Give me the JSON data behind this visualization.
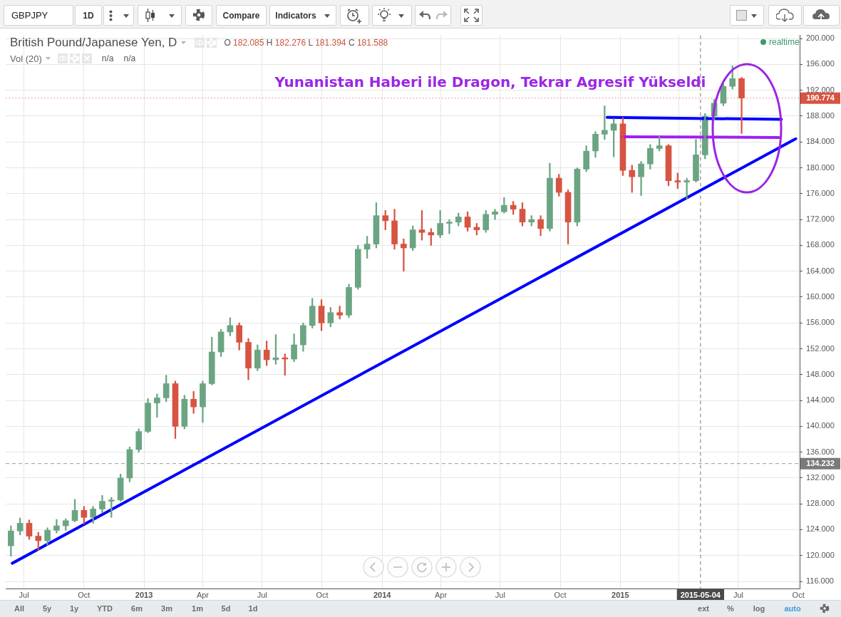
{
  "chart_data": {
    "type": "candlestick",
    "title": "British Pound/Japanese Yen, D",
    "x": [
      "2012-06-11",
      "2012-06-25",
      "2012-07-09",
      "2012-07-23",
      "2012-08-06",
      "2012-08-20",
      "2012-09-03",
      "2012-09-17",
      "2012-10-01",
      "2012-10-15",
      "2012-10-29",
      "2012-11-12",
      "2012-11-26",
      "2012-12-10",
      "2012-12-24",
      "2013-01-07",
      "2013-01-21",
      "2013-02-04",
      "2013-02-18",
      "2013-03-04",
      "2013-03-18",
      "2013-04-01",
      "2013-04-15",
      "2013-04-29",
      "2013-05-13",
      "2013-05-27",
      "2013-06-10",
      "2013-06-24",
      "2013-07-08",
      "2013-07-22",
      "2013-08-05",
      "2013-08-19",
      "2013-09-02",
      "2013-09-16",
      "2013-09-30",
      "2013-10-14",
      "2013-10-28",
      "2013-11-11",
      "2013-11-25",
      "2013-12-09",
      "2013-12-23",
      "2014-01-06",
      "2014-01-20",
      "2014-02-03",
      "2014-02-17",
      "2014-03-03",
      "2014-03-17",
      "2014-03-31",
      "2014-04-14",
      "2014-04-28",
      "2014-05-12",
      "2014-05-26",
      "2014-06-09",
      "2014-06-23",
      "2014-07-07",
      "2014-07-21",
      "2014-08-04",
      "2014-08-18",
      "2014-09-01",
      "2014-09-15",
      "2014-09-29",
      "2014-10-13",
      "2014-10-27",
      "2014-11-10",
      "2014-11-24",
      "2014-12-08",
      "2014-12-22",
      "2015-01-05",
      "2015-01-19",
      "2015-02-02",
      "2015-02-16",
      "2015-03-02",
      "2015-03-16",
      "2015-03-30",
      "2015-04-13",
      "2015-04-27",
      "2015-05-11",
      "2015-05-25",
      "2015-06-08",
      "2015-06-22",
      "2015-07-06"
    ],
    "ohlc": [
      [
        121.5,
        124.6,
        119.9,
        123.8
      ],
      [
        123.8,
        125.8,
        123.2,
        125.0
      ],
      [
        125.0,
        125.5,
        122.5,
        123.0
      ],
      [
        123.0,
        123.6,
        120.8,
        122.3
      ],
      [
        122.3,
        124.3,
        121.6,
        123.9
      ],
      [
        123.9,
        125.6,
        123.5,
        124.6
      ],
      [
        124.6,
        125.7,
        123.9,
        125.4
      ],
      [
        125.4,
        128.7,
        125.2,
        127.0
      ],
      [
        127.0,
        127.6,
        124.9,
        125.9
      ],
      [
        125.9,
        127.6,
        125.0,
        127.2
      ],
      [
        127.2,
        129.3,
        126.6,
        128.4
      ],
      [
        128.4,
        129.0,
        125.9,
        128.6
      ],
      [
        128.6,
        132.6,
        128.4,
        132.0
      ],
      [
        132.0,
        136.8,
        131.4,
        136.4
      ],
      [
        136.4,
        139.6,
        136.0,
        139.2
      ],
      [
        139.2,
        144.3,
        139.0,
        143.6
      ],
      [
        143.6,
        145.0,
        141.4,
        144.4
      ],
      [
        144.4,
        147.9,
        143.8,
        146.6
      ],
      [
        146.6,
        147.0,
        138.1,
        140.0
      ],
      [
        140.0,
        144.8,
        139.6,
        144.2
      ],
      [
        144.2,
        145.4,
        142.0,
        143.0
      ],
      [
        143.0,
        147.0,
        140.6,
        146.6
      ],
      [
        146.6,
        153.8,
        146.4,
        151.5
      ],
      [
        151.5,
        155.0,
        150.8,
        154.6
      ],
      [
        154.6,
        156.8,
        154.0,
        155.6
      ],
      [
        155.6,
        156.0,
        151.8,
        153.0
      ],
      [
        153.0,
        153.6,
        147.2,
        149.0
      ],
      [
        149.0,
        152.6,
        148.6,
        151.8
      ],
      [
        151.8,
        153.2,
        149.4,
        150.3
      ],
      [
        150.3,
        154.2,
        149.6,
        150.6
      ],
      [
        150.6,
        151.2,
        147.9,
        150.4
      ],
      [
        150.4,
        154.3,
        150.0,
        152.6
      ],
      [
        152.6,
        156.0,
        151.6,
        155.6
      ],
      [
        155.6,
        159.8,
        155.2,
        158.6
      ],
      [
        158.6,
        159.6,
        154.8,
        156.0
      ],
      [
        156.0,
        158.4,
        155.4,
        157.6
      ],
      [
        157.6,
        158.6,
        156.6,
        157.2
      ],
      [
        157.2,
        162.0,
        156.8,
        161.5
      ],
      [
        161.5,
        168.0,
        161.2,
        167.4
      ],
      [
        167.4,
        169.4,
        166.0,
        168.2
      ],
      [
        168.2,
        174.6,
        167.6,
        172.6
      ],
      [
        172.6,
        173.4,
        170.4,
        171.8
      ],
      [
        171.8,
        173.6,
        167.4,
        168.2
      ],
      [
        168.2,
        169.0,
        164.0,
        167.6
      ],
      [
        167.6,
        171.0,
        167.2,
        170.4
      ],
      [
        170.4,
        173.4,
        168.8,
        170.0
      ],
      [
        170.0,
        170.6,
        168.0,
        169.6
      ],
      [
        169.6,
        173.4,
        169.2,
        171.4
      ],
      [
        171.4,
        172.0,
        169.8,
        171.6
      ],
      [
        171.6,
        173.0,
        171.0,
        172.4
      ],
      [
        172.4,
        173.2,
        170.2,
        170.8
      ],
      [
        170.8,
        171.4,
        169.6,
        170.4
      ],
      [
        170.4,
        173.4,
        170.0,
        172.8
      ],
      [
        172.8,
        173.6,
        172.0,
        173.2
      ],
      [
        173.2,
        175.4,
        173.0,
        174.2
      ],
      [
        174.2,
        174.8,
        172.8,
        173.6
      ],
      [
        173.6,
        174.6,
        171.0,
        171.6
      ],
      [
        171.6,
        172.6,
        171.0,
        172.0
      ],
      [
        172.0,
        172.6,
        169.5,
        170.6
      ],
      [
        170.6,
        180.7,
        170.2,
        178.4
      ],
      [
        178.4,
        179.0,
        175.6,
        176.2
      ],
      [
        176.2,
        176.6,
        168.2,
        171.6
      ],
      [
        171.6,
        180.0,
        171.0,
        179.8
      ],
      [
        179.8,
        183.4,
        179.4,
        182.6
      ],
      [
        182.6,
        185.6,
        181.6,
        185.2
      ],
      [
        185.2,
        189.6,
        184.4,
        185.8
      ],
      [
        185.8,
        187.6,
        181.7,
        186.8
      ],
      [
        186.8,
        187.8,
        178.8,
        179.6
      ],
      [
        179.6,
        180.4,
        176.2,
        178.6
      ],
      [
        178.6,
        181.0,
        175.7,
        180.6
      ],
      [
        180.6,
        183.6,
        179.8,
        183.0
      ],
      [
        183.0,
        184.9,
        182.6,
        183.4
      ],
      [
        183.4,
        183.6,
        177.2,
        178.0
      ],
      [
        178.0,
        179.2,
        176.8,
        177.8
      ],
      [
        177.8,
        178.4,
        175.2,
        178.0
      ],
      [
        178.0,
        184.4,
        177.8,
        182.0
      ],
      [
        182.0,
        188.4,
        181.4,
        188.0
      ],
      [
        188.0,
        190.6,
        187.4,
        190.0
      ],
      [
        190.0,
        193.0,
        189.6,
        192.6
      ],
      [
        192.6,
        195.8,
        192.2,
        193.8
      ],
      [
        193.8,
        194.0,
        185.3,
        190.8
      ]
    ],
    "colors": [
      "#6ba583",
      "#6ba583",
      "#d75442",
      "#d75442",
      "#6ba583",
      "#6ba583",
      "#6ba583",
      "#6ba583",
      "#d75442",
      "#6ba583",
      "#6ba583",
      "#6ba583",
      "#6ba583",
      "#6ba583",
      "#6ba583",
      "#6ba583",
      "#6ba583",
      "#6ba583",
      "#d75442",
      "#6ba583",
      "#d75442",
      "#6ba583",
      "#6ba583",
      "#6ba583",
      "#6ba583",
      "#d75442",
      "#d75442",
      "#6ba583",
      "#d75442",
      "#6ba583",
      "#d75442",
      "#6ba583",
      "#6ba583",
      "#6ba583",
      "#d75442",
      "#6ba583",
      "#d75442",
      "#6ba583",
      "#6ba583",
      "#6ba583",
      "#6ba583",
      "#d75442",
      "#d75442",
      "#d75442",
      "#6ba583",
      "#d75442",
      "#d75442",
      "#6ba583",
      "#6ba583",
      "#6ba583",
      "#d75442",
      "#d75442",
      "#6ba583",
      "#6ba583",
      "#6ba583",
      "#d75442",
      "#d75442",
      "#6ba583",
      "#d75442",
      "#6ba583",
      "#d75442",
      "#d75442",
      "#6ba583",
      "#6ba583",
      "#6ba583",
      "#6ba583",
      "#6ba583",
      "#d75442",
      "#d75442",
      "#6ba583",
      "#6ba583",
      "#6ba583",
      "#d75442",
      "#d75442",
      "#6ba583",
      "#6ba583",
      "#6ba583",
      "#6ba583",
      "#6ba583",
      "#6ba583",
      "#d75442"
    ],
    "series": [
      {
        "type": "line",
        "x": [
          "2012-06-13",
          "2015-09-27"
        ],
        "values": [
          118.8,
          184.5
        ],
        "color": "#0000ff"
      },
      {
        "type": "line",
        "x": [
          "2014-12-12",
          "2015-09-05"
        ],
        "values": [
          187.8,
          187.5
        ],
        "color": "#0000ff"
      },
      {
        "type": "line",
        "x": [
          "2015-01-04",
          "2015-09-01"
        ],
        "values": [
          184.8,
          184.7
        ],
        "color": "#9e1ff0"
      }
    ],
    "xlim": [
      "2012-06-03",
      "2015-10-03"
    ],
    "xticks": [
      {
        "value": "2012-07-01",
        "label": "Jul"
      },
      {
        "value": "2012-10-01",
        "label": "Oct"
      },
      {
        "value": "2013-01-01",
        "label": "2013"
      },
      {
        "value": "2013-04-01",
        "label": "Apr"
      },
      {
        "value": "2013-07-01",
        "label": "Jul"
      },
      {
        "value": "2013-10-01",
        "label": "Oct"
      },
      {
        "value": "2014-01-01",
        "label": "2014"
      },
      {
        "value": "2014-04-01",
        "label": "Apr"
      },
      {
        "value": "2014-07-01",
        "label": "Jul"
      },
      {
        "value": "2014-10-01",
        "label": "Oct"
      },
      {
        "value": "2015-01-01",
        "label": "2015"
      },
      {
        "value": "2015-04-01",
        "label": null
      },
      {
        "value": "2015-07-01",
        "label": "Jul"
      },
      {
        "value": "2015-10-01",
        "label": "Oct"
      }
    ],
    "ylim": [
      114.9,
      200.5
    ],
    "yticks": [
      {
        "value": 116,
        "label": "116.000"
      },
      {
        "value": 120,
        "label": "120.000"
      },
      {
        "value": 124,
        "label": "124.000"
      },
      {
        "value": 128,
        "label": "128.000"
      },
      {
        "value": 132,
        "label": "132.000"
      },
      {
        "value": 136,
        "label": "136.000"
      },
      {
        "value": 140,
        "label": "140.000"
      },
      {
        "value": 144,
        "label": "144.000"
      },
      {
        "value": 148,
        "label": "148.000"
      },
      {
        "value": 152,
        "label": "152.000"
      },
      {
        "value": 156,
        "label": "156.000"
      },
      {
        "value": 160,
        "label": "160.000"
      },
      {
        "value": 164,
        "label": "164.000"
      },
      {
        "value": 168,
        "label": "168.000"
      },
      {
        "value": 172,
        "label": "172.000"
      },
      {
        "value": 176,
        "label": "176.000"
      },
      {
        "value": 180,
        "label": "180.000"
      },
      {
        "value": 184,
        "label": "184.000"
      },
      {
        "value": 188,
        "label": "188.000"
      },
      {
        "value": 192,
        "label": "192.000"
      },
      {
        "value": 196,
        "label": "196.000"
      },
      {
        "value": 200,
        "label": "200.000"
      }
    ],
    "ref_lines": [
      {
        "axis": "y",
        "value": 190.774,
        "label": "190.774",
        "color": "#d75442",
        "line_style": "dotted"
      },
      {
        "axis": "y",
        "value": 134.232,
        "label": "134.232",
        "color": "#7a7a7a",
        "line_style": "dashed"
      },
      {
        "axis": "x",
        "value": "2015-05-04",
        "label": "2015-05-04",
        "color": "#4a4a4a",
        "line_style": "dashed"
      }
    ],
    "grid": true,
    "annotations": [
      "GBPJPY",
      "1D",
      "Compare",
      "Indicators",
      "O 182.085 H 182.276 L 181.394 C 181.588",
      "Vol (20)",
      "n/a",
      "n/a",
      "realtime",
      "Yunanistan Haberi ile Dragon, Tekrar Agresif Yükseldi",
      "All",
      "5y",
      "1y",
      "YTD",
      "6m",
      "3m",
      "1m",
      "5d",
      "1d",
      "ext",
      "%",
      "log",
      "auto"
    ]
  }
}
